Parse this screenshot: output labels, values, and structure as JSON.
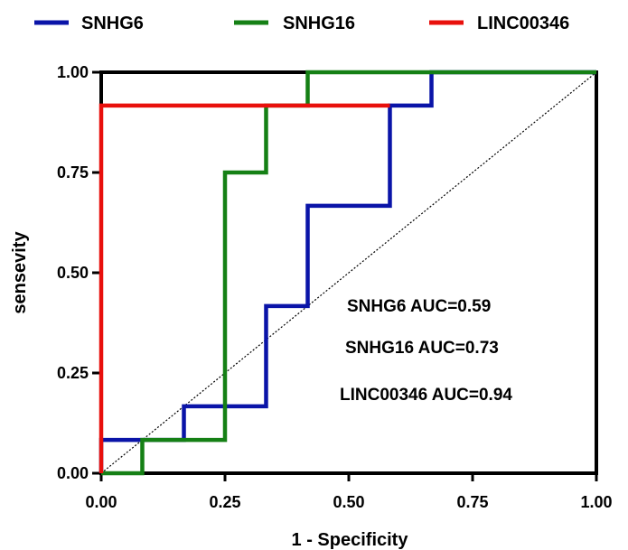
{
  "chart_data": {
    "type": "line",
    "subtype": "roc-step",
    "xlabel": "1 - Specificity",
    "ylabel": "sensevity",
    "xlim": [
      0,
      1
    ],
    "ylim": [
      0,
      1
    ],
    "x_ticks": [
      0,
      0.25,
      0.5,
      0.75,
      1
    ],
    "y_ticks": [
      0,
      0.25,
      0.5,
      0.75,
      1
    ],
    "x_tick_labels": [
      "0.00",
      "0.25",
      "0.50",
      "0.75",
      "1.00"
    ],
    "y_tick_labels": [
      "0.00",
      "0.25",
      "0.50",
      "0.75",
      "1.00"
    ],
    "grid": false,
    "legend_position": "top",
    "reference_line": {
      "style": "dotted",
      "from": [
        0,
        0
      ],
      "to": [
        1,
        1
      ],
      "color": "#000000"
    },
    "series": [
      {
        "name": "SNHG6",
        "color": "#0a14a8",
        "x": [
          0,
          0,
          0.083,
          0.083,
          0.167,
          0.167,
          0.333,
          0.333,
          0.417,
          0.417,
          0.583,
          0.583,
          0.667,
          0.667,
          1
        ],
        "y": [
          0,
          0.083,
          0.083,
          0.083,
          0.083,
          0.167,
          0.167,
          0.417,
          0.417,
          0.667,
          0.667,
          0.917,
          0.917,
          1,
          1
        ]
      },
      {
        "name": "SNHG16",
        "color": "#158015",
        "x": [
          0,
          0.083,
          0.083,
          0.25,
          0.25,
          0.333,
          0.333,
          0.417,
          0.417,
          1
        ],
        "y": [
          0,
          0,
          0.083,
          0.083,
          0.75,
          0.75,
          0.917,
          0.917,
          1,
          1
        ]
      },
      {
        "name": "LINC00346",
        "color": "#e8100c",
        "x": [
          0,
          0,
          0.583
        ],
        "y": [
          0,
          0.917,
          0.917
        ]
      }
    ],
    "annotations": [
      {
        "text": "SNHG6 AUC=0.59"
      },
      {
        "text": "SNHG16 AUC=0.73"
      },
      {
        "text": "LINC00346 AUC=0.94"
      }
    ]
  }
}
